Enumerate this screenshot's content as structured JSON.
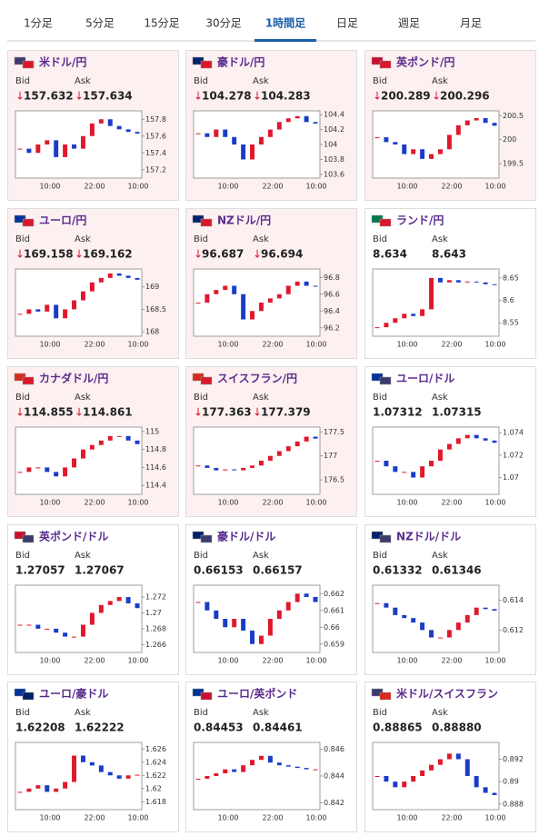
{
  "tabs": {
    "items": [
      "1分足",
      "5分足",
      "15分足",
      "30分足",
      "1時間足",
      "日足",
      "週足",
      "月足"
    ],
    "active": 4
  },
  "labels": {
    "bid": "Bid",
    "ask": "Ask"
  },
  "panels": [
    {
      "pair": "米ドル/円",
      "flags": [
        "#3c3b6e",
        "#d9182d"
      ],
      "background": "#fcf0f0",
      "bid_arrow": "↓",
      "bid": "157.632",
      "ask_arrow": "↓",
      "ask": "157.634",
      "chart": {
        "type": "candlestick",
        "closes": [
          157.45,
          157.4,
          157.5,
          157.55,
          157.35,
          157.5,
          157.45,
          157.6,
          157.75,
          157.8,
          157.72,
          157.68,
          157.65,
          157.63
        ],
        "ylim": [
          157.1,
          157.9
        ],
        "yticks": [
          157.2,
          157.4,
          157.6,
          157.8
        ],
        "xticks": [
          "10:00",
          "22:00",
          "10:00"
        ]
      }
    },
    {
      "pair": "豪ドル/円",
      "flags": [
        "#012169",
        "#d9182d"
      ],
      "background": "#fcf0f0",
      "bid_arrow": "↓",
      "bid": "104.278",
      "ask_arrow": "↓",
      "ask": "104.283",
      "chart": {
        "type": "candlestick",
        "closes": [
          104.15,
          104.1,
          104.2,
          104.1,
          104.0,
          103.8,
          104.0,
          104.1,
          104.2,
          104.3,
          104.35,
          104.38,
          104.3,
          104.28
        ],
        "ylim": [
          103.55,
          104.45
        ],
        "yticks": [
          103.6,
          103.8,
          104,
          104.2,
          104.4
        ],
        "xticks": [
          "10:00",
          "22:00",
          "10:00"
        ]
      }
    },
    {
      "pair": "英ポンド/円",
      "flags": [
        "#c8102e",
        "#d9182d"
      ],
      "background": "#fcf0f0",
      "bid_arrow": "↓",
      "bid": "200.289",
      "ask_arrow": "↓",
      "ask": "200.296",
      "chart": {
        "type": "candlestick",
        "closes": [
          200.05,
          199.95,
          199.9,
          199.7,
          199.8,
          199.6,
          199.7,
          199.8,
          200.1,
          200.3,
          200.4,
          200.45,
          200.35,
          200.29
        ],
        "ylim": [
          199.2,
          200.6
        ],
        "yticks": [
          199.5,
          200,
          200.5
        ],
        "xticks": [
          "10:00",
          "22:00",
          "10:00"
        ]
      }
    },
    {
      "pair": "ユーロ/円",
      "flags": [
        "#003399",
        "#d9182d"
      ],
      "background": "#fcf0f0",
      "bid_arrow": "↓",
      "bid": "169.158",
      "ask_arrow": "↓",
      "ask": "169.162",
      "chart": {
        "type": "candlestick",
        "closes": [
          168.4,
          168.5,
          168.45,
          168.6,
          168.3,
          168.5,
          168.7,
          168.9,
          169.1,
          169.2,
          169.3,
          169.25,
          169.2,
          169.16
        ],
        "ylim": [
          167.9,
          169.4
        ],
        "yticks": [
          168,
          168.5,
          169
        ],
        "xticks": [
          "10:00",
          "22:00",
          "10:00"
        ]
      }
    },
    {
      "pair": "NZドル/円",
      "flags": [
        "#012169",
        "#d9182d"
      ],
      "background": "#fcf0f0",
      "bid_arrow": "↓",
      "bid": "96.687",
      "ask_arrow": "↓",
      "ask": "96.694",
      "chart": {
        "type": "candlestick",
        "closes": [
          96.5,
          96.6,
          96.65,
          96.7,
          96.6,
          96.3,
          96.4,
          96.5,
          96.55,
          96.6,
          96.7,
          96.75,
          96.7,
          96.69
        ],
        "ylim": [
          96.1,
          96.9
        ],
        "yticks": [
          96.2,
          96.4,
          96.6,
          96.8
        ],
        "xticks": [
          "10:00",
          "22:00",
          "10:00"
        ]
      }
    },
    {
      "pair": "ランド/円",
      "flags": [
        "#007a4d",
        "#d9182d"
      ],
      "background": "#ffffff",
      "bid": "8.634",
      "ask": "8.643",
      "chart": {
        "type": "candlestick",
        "closes": [
          8.54,
          8.55,
          8.56,
          8.57,
          8.565,
          8.58,
          8.65,
          8.64,
          8.645,
          8.64,
          8.642,
          8.64,
          8.636,
          8.634
        ],
        "ylim": [
          8.52,
          8.67
        ],
        "yticks": [
          8.55,
          8.6,
          8.65
        ],
        "xticks": [
          "10:00",
          "22:00",
          "10:00"
        ]
      }
    },
    {
      "pair": "カナダドル/円",
      "flags": [
        "#d52b1e",
        "#d9182d"
      ],
      "background": "#fcf0f0",
      "bid_arrow": "↓",
      "bid": "114.855",
      "ask_arrow": "↓",
      "ask": "114.861",
      "chart": {
        "type": "candlestick",
        "closes": [
          114.55,
          114.6,
          114.6,
          114.55,
          114.5,
          114.6,
          114.7,
          114.8,
          114.85,
          114.9,
          114.95,
          114.95,
          114.9,
          114.86
        ],
        "ylim": [
          114.3,
          115.05
        ],
        "yticks": [
          114.4,
          114.6,
          114.8,
          115
        ],
        "xticks": [
          "10:00",
          "22:00",
          "10:00"
        ]
      }
    },
    {
      "pair": "スイスフラン/円",
      "flags": [
        "#d52b1e",
        "#d9182d"
      ],
      "background": "#fcf0f0",
      "bid_arrow": "↓",
      "bid": "177.363",
      "ask_arrow": "↓",
      "ask": "177.379",
      "chart": {
        "type": "candlestick",
        "closes": [
          176.8,
          176.75,
          176.7,
          176.72,
          176.7,
          176.75,
          176.8,
          176.9,
          177.0,
          177.1,
          177.2,
          177.3,
          177.4,
          177.36
        ],
        "ylim": [
          176.2,
          177.6
        ],
        "yticks": [
          176.5,
          177,
          177.5
        ],
        "xticks": [
          "10:00",
          "22:00",
          "10:00"
        ]
      }
    },
    {
      "pair": "ユーロ/ドル",
      "flags": [
        "#003399",
        "#3c3b6e"
      ],
      "background": "#ffffff",
      "bid": "1.07312",
      "ask": "1.07315",
      "chart": {
        "type": "candlestick",
        "closes": [
          1.0715,
          1.071,
          1.0705,
          1.0705,
          1.07,
          1.071,
          1.0715,
          1.0725,
          1.073,
          1.0735,
          1.0738,
          1.0735,
          1.0733,
          1.0731
        ],
        "ylim": [
          1.0685,
          1.0745
        ],
        "yticks": [
          1.07,
          1.072,
          1.074
        ],
        "xticks": [
          "10:00",
          "22:00",
          "10:00"
        ]
      }
    },
    {
      "pair": "英ポンド/ドル",
      "flags": [
        "#c8102e",
        "#3c3b6e"
      ],
      "background": "#ffffff",
      "bid": "1.27057",
      "ask": "1.27067",
      "chart": {
        "type": "candlestick",
        "closes": [
          1.2685,
          1.2685,
          1.268,
          1.268,
          1.2675,
          1.267,
          1.267,
          1.2685,
          1.27,
          1.271,
          1.2715,
          1.272,
          1.2712,
          1.2706
        ],
        "ylim": [
          1.265,
          1.2735
        ],
        "yticks": [
          1.266,
          1.268,
          1.27,
          1.272
        ],
        "xticks": [
          "10:00",
          "22:00",
          "10:00"
        ]
      }
    },
    {
      "pair": "豪ドル/ドル",
      "flags": [
        "#012169",
        "#3c3b6e"
      ],
      "background": "#ffffff",
      "bid": "0.66153",
      "ask": "0.66157",
      "chart": {
        "type": "candlestick",
        "closes": [
          0.6615,
          0.661,
          0.6605,
          0.66,
          0.6605,
          0.6598,
          0.659,
          0.6595,
          0.6605,
          0.661,
          0.6615,
          0.662,
          0.6618,
          0.6615
        ],
        "ylim": [
          0.6585,
          0.6625
        ],
        "yticks": [
          0.659,
          0.66,
          0.661,
          0.662
        ],
        "xticks": [
          "10:00",
          "22:00",
          "10:00"
        ]
      }
    },
    {
      "pair": "NZドル/ドル",
      "flags": [
        "#012169",
        "#3c3b6e"
      ],
      "background": "#ffffff",
      "bid": "0.61332",
      "ask": "0.61346",
      "chart": {
        "type": "candlestick",
        "closes": [
          0.6138,
          0.6135,
          0.613,
          0.6128,
          0.6125,
          0.612,
          0.6115,
          0.6115,
          0.612,
          0.6125,
          0.613,
          0.6135,
          0.6134,
          0.6133
        ],
        "ylim": [
          0.6105,
          0.615
        ],
        "yticks": [
          0.612,
          0.614
        ],
        "xticks": [
          "10:00",
          "22:00",
          "10:00"
        ]
      }
    },
    {
      "pair": "ユーロ/豪ドル",
      "flags": [
        "#003399",
        "#012169"
      ],
      "background": "#ffffff",
      "bid": "1.62208",
      "ask": "1.62222",
      "chart": {
        "type": "candlestick",
        "closes": [
          1.6195,
          1.62,
          1.6205,
          1.6195,
          1.62,
          1.621,
          1.625,
          1.624,
          1.6235,
          1.6225,
          1.622,
          1.6215,
          1.622,
          1.6221
        ],
        "ylim": [
          1.6168,
          1.627
        ],
        "yticks": [
          1.618,
          1.62,
          1.622,
          1.624,
          1.626
        ],
        "xticks": [
          "10:00",
          "22:00",
          "10:00"
        ]
      }
    },
    {
      "pair": "ユーロ/英ポンド",
      "flags": [
        "#003399",
        "#c8102e"
      ],
      "background": "#ffffff",
      "bid": "0.84453",
      "ask": "0.84461",
      "chart": {
        "type": "candlestick",
        "closes": [
          0.8438,
          0.844,
          0.8442,
          0.8445,
          0.8443,
          0.8448,
          0.8452,
          0.8455,
          0.845,
          0.8448,
          0.8447,
          0.8446,
          0.8445,
          0.8445
        ],
        "ylim": [
          0.8415,
          0.8465
        ],
        "yticks": [
          0.842,
          0.844,
          0.846
        ],
        "xticks": [
          "10:00",
          "22:00",
          "10:00"
        ]
      }
    },
    {
      "pair": "米ドル/スイスフラン",
      "flags": [
        "#3c3b6e",
        "#d52b1e"
      ],
      "background": "#ffffff",
      "bid": "0.88865",
      "ask": "0.88880",
      "chart": {
        "type": "candlestick",
        "closes": [
          0.8905,
          0.89,
          0.8895,
          0.89,
          0.8905,
          0.891,
          0.8915,
          0.892,
          0.8925,
          0.892,
          0.8905,
          0.8895,
          0.889,
          0.8888
        ],
        "ylim": [
          0.8875,
          0.8935
        ],
        "yticks": [
          0.888,
          0.89,
          0.892
        ],
        "xticks": [
          "10:00",
          "22:00",
          "10:00"
        ]
      }
    }
  ]
}
